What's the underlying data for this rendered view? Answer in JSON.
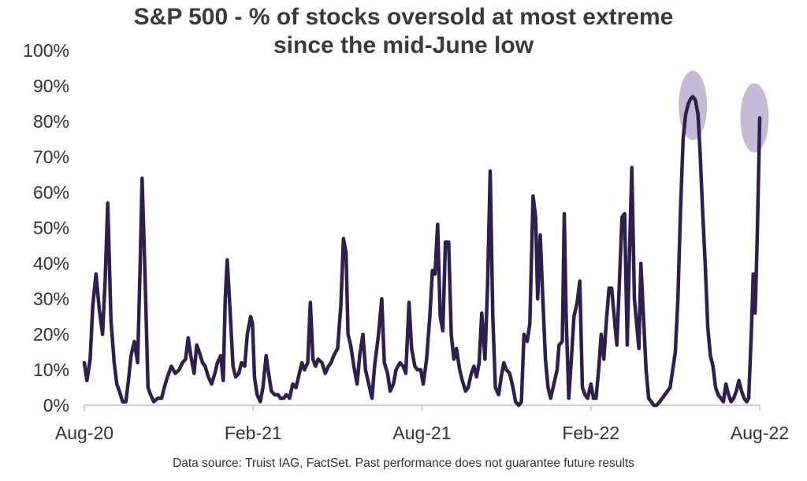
{
  "chart_data": {
    "type": "line",
    "title_line1": "S&P 500 - % of stocks oversold at most extreme",
    "title_line2": "since the mid-June low",
    "xlabel": "",
    "ylabel": "",
    "ylim": [
      0,
      100
    ],
    "y_ticks": [
      "0%",
      "10%",
      "20%",
      "30%",
      "40%",
      "50%",
      "60%",
      "70%",
      "80%",
      "90%",
      "100%"
    ],
    "y_tick_values": [
      0,
      10,
      20,
      30,
      40,
      50,
      60,
      70,
      80,
      90,
      100
    ],
    "x_ticks": [
      "Aug-20",
      "Feb-21",
      "Aug-21",
      "Feb-22",
      "Aug-22"
    ],
    "grid": false,
    "legend": "none",
    "line_color": "#2e1f4f",
    "highlight_color": "#b8b0cc",
    "x_range": [
      0,
      104
    ],
    "x_tick_positions": [
      0,
      26,
      52,
      78,
      104
    ],
    "highlights": [
      {
        "x": 93.7,
        "y": 84.5
      },
      {
        "x": 103.2,
        "y": 81
      }
    ],
    "series": [
      {
        "values": [
          [
            0,
            12
          ],
          [
            0.4,
            7
          ],
          [
            0.9,
            13
          ],
          [
            1.3,
            28
          ],
          [
            1.8,
            37
          ],
          [
            2.3,
            27
          ],
          [
            2.8,
            20
          ],
          [
            3.2,
            35
          ],
          [
            3.6,
            57
          ],
          [
            4.1,
            24
          ],
          [
            4.6,
            12
          ],
          [
            5,
            6
          ],
          [
            5.4,
            4
          ],
          [
            5.9,
            1
          ],
          [
            6.4,
            1
          ],
          [
            6.8,
            7
          ],
          [
            7.2,
            14
          ],
          [
            7.7,
            18
          ],
          [
            8.2,
            12
          ],
          [
            8.6,
            40
          ],
          [
            8.9,
            64
          ],
          [
            9.3,
            40
          ],
          [
            9.8,
            5
          ],
          [
            10.2,
            3
          ],
          [
            10.7,
            1
          ],
          [
            11.3,
            2
          ],
          [
            11.9,
            2
          ],
          [
            12.3,
            5
          ],
          [
            12.8,
            8
          ],
          [
            13.4,
            11
          ],
          [
            14,
            9
          ],
          [
            14.6,
            10
          ],
          [
            15.1,
            12
          ],
          [
            15.6,
            13
          ],
          [
            16,
            19
          ],
          [
            16.4,
            14
          ],
          [
            16.9,
            9
          ],
          [
            17.3,
            17
          ],
          [
            17.7,
            15
          ],
          [
            18.2,
            12
          ],
          [
            18.6,
            11
          ],
          [
            19.1,
            8
          ],
          [
            19.6,
            6
          ],
          [
            20.1,
            9
          ],
          [
            20.5,
            12
          ],
          [
            21,
            14
          ],
          [
            21.4,
            7
          ],
          [
            21.7,
            30
          ],
          [
            22,
            41
          ],
          [
            22.4,
            28
          ],
          [
            22.9,
            11
          ],
          [
            23.3,
            8
          ],
          [
            23.8,
            9
          ],
          [
            24.2,
            12
          ],
          [
            24.7,
            11
          ],
          [
            25.1,
            20
          ],
          [
            25.6,
            25
          ],
          [
            25.9,
            23
          ],
          [
            26.2,
            8
          ],
          [
            26.6,
            3
          ],
          [
            27.1,
            1
          ],
          [
            27.5,
            5
          ],
          [
            28,
            14
          ],
          [
            28.3,
            10
          ],
          [
            28.8,
            4
          ],
          [
            29.3,
            3
          ],
          [
            29.8,
            3
          ],
          [
            30.2,
            2
          ],
          [
            30.7,
            2
          ],
          [
            31.1,
            3
          ],
          [
            31.6,
            2
          ],
          [
            32.1,
            6
          ],
          [
            32.6,
            5
          ],
          [
            33.1,
            9
          ],
          [
            33.5,
            12
          ],
          [
            33.9,
            10
          ],
          [
            34.4,
            12
          ],
          [
            34.8,
            29
          ],
          [
            35.2,
            13
          ],
          [
            35.6,
            11
          ],
          [
            36,
            13
          ],
          [
            36.6,
            12
          ],
          [
            37.1,
            9
          ],
          [
            37.6,
            11
          ],
          [
            38,
            12
          ],
          [
            38.4,
            14
          ],
          [
            39,
            16
          ],
          [
            39.5,
            28
          ],
          [
            39.9,
            47
          ],
          [
            40.3,
            43
          ],
          [
            40.6,
            20
          ],
          [
            41,
            17
          ],
          [
            41.5,
            11
          ],
          [
            42,
            6
          ],
          [
            42.4,
            14
          ],
          [
            42.9,
            20
          ],
          [
            43.3,
            10
          ],
          [
            43.8,
            6
          ],
          [
            44.3,
            2
          ],
          [
            44.7,
            11
          ],
          [
            45.3,
            20
          ],
          [
            45.8,
            30
          ],
          [
            46.2,
            12
          ],
          [
            46.7,
            9
          ],
          [
            47.1,
            4
          ],
          [
            47.6,
            6
          ],
          [
            48,
            10
          ],
          [
            48.6,
            12
          ],
          [
            49.1,
            11
          ],
          [
            49.5,
            9
          ],
          [
            50,
            29
          ],
          [
            50.4,
            16
          ],
          [
            50.9,
            11
          ],
          [
            51.3,
            10
          ],
          [
            51.8,
            10
          ],
          [
            52.2,
            6
          ],
          [
            52.7,
            13
          ],
          [
            53.2,
            25
          ],
          [
            53.6,
            38
          ],
          [
            54,
            37
          ],
          [
            54.4,
            51
          ],
          [
            54.8,
            25
          ],
          [
            55.2,
            21
          ],
          [
            55.6,
            46
          ],
          [
            56.1,
            46
          ],
          [
            56.5,
            20
          ],
          [
            56.9,
            13
          ],
          [
            57.3,
            16
          ],
          [
            57.8,
            10
          ],
          [
            58.2,
            7
          ],
          [
            58.7,
            4
          ],
          [
            59.1,
            5
          ],
          [
            59.6,
            9
          ],
          [
            60,
            11
          ],
          [
            60.4,
            8
          ],
          [
            60.8,
            12
          ],
          [
            61.2,
            26
          ],
          [
            61.7,
            13
          ],
          [
            62.1,
            34
          ],
          [
            62.5,
            66
          ],
          [
            62.9,
            25
          ],
          [
            63.3,
            5
          ],
          [
            63.8,
            3
          ],
          [
            64.2,
            8
          ],
          [
            64.6,
            12
          ],
          [
            65,
            10
          ],
          [
            65.5,
            9
          ],
          [
            66,
            5
          ],
          [
            66.4,
            1
          ],
          [
            66.9,
            0
          ],
          [
            67.3,
            1
          ],
          [
            67.7,
            20
          ],
          [
            68.2,
            18
          ],
          [
            68.6,
            23
          ],
          [
            69.1,
            59
          ],
          [
            69.5,
            53
          ],
          [
            69.8,
            30
          ],
          [
            70.2,
            48
          ],
          [
            70.6,
            30
          ],
          [
            71,
            13
          ],
          [
            71.4,
            5
          ],
          [
            71.8,
            2
          ],
          [
            72.3,
            6
          ],
          [
            72.8,
            10
          ],
          [
            73.1,
            17
          ],
          [
            73.6,
            18
          ],
          [
            73.9,
            54
          ],
          [
            74.2,
            25
          ],
          [
            74.6,
            2
          ],
          [
            75,
            13
          ],
          [
            75.4,
            25
          ],
          [
            75.9,
            29
          ],
          [
            76.3,
            35
          ],
          [
            76.7,
            5
          ],
          [
            77.1,
            3
          ],
          [
            77.5,
            2
          ],
          [
            78,
            6
          ],
          [
            78.4,
            2
          ],
          [
            78.8,
            2
          ],
          [
            79.2,
            10
          ],
          [
            79.6,
            20
          ],
          [
            80,
            13
          ],
          [
            80.4,
            24
          ],
          [
            80.8,
            33
          ],
          [
            81.2,
            33
          ],
          [
            81.7,
            23
          ],
          [
            82,
            17
          ],
          [
            82.4,
            35
          ],
          [
            82.8,
            53
          ],
          [
            83.2,
            54
          ],
          [
            83.6,
            17
          ],
          [
            83.9,
            40
          ],
          [
            84.3,
            67
          ],
          [
            84.7,
            30
          ],
          [
            85,
            24
          ],
          [
            85.4,
            16
          ],
          [
            85.7,
            40
          ],
          [
            86.1,
            25
          ],
          [
            86.5,
            10
          ],
          [
            86.9,
            2
          ],
          [
            87.3,
            1
          ],
          [
            87.7,
            0
          ],
          [
            88.1,
            0
          ],
          [
            88.6,
            1
          ],
          [
            89,
            2
          ],
          [
            89.4,
            3
          ],
          [
            89.8,
            4
          ],
          [
            90.2,
            5
          ],
          [
            90.6,
            10
          ],
          [
            91,
            15
          ],
          [
            91.4,
            30
          ],
          [
            91.8,
            55
          ],
          [
            92.2,
            75
          ],
          [
            92.6,
            82
          ],
          [
            93,
            85
          ],
          [
            93.4,
            86.5
          ],
          [
            93.7,
            87
          ],
          [
            94.1,
            86
          ],
          [
            94.5,
            82
          ],
          [
            94.8,
            72
          ],
          [
            95.2,
            55
          ],
          [
            95.6,
            40
          ],
          [
            96,
            22
          ],
          [
            96.4,
            14
          ],
          [
            96.8,
            11
          ],
          [
            97.2,
            5
          ],
          [
            97.6,
            3
          ],
          [
            98,
            2
          ],
          [
            98.4,
            1
          ],
          [
            98.8,
            6
          ],
          [
            99.2,
            3
          ],
          [
            99.6,
            1
          ],
          [
            100,
            2
          ],
          [
            100.4,
            4
          ],
          [
            100.8,
            7
          ],
          [
            101.2,
            4
          ],
          [
            101.6,
            2
          ],
          [
            102,
            1
          ],
          [
            102.3,
            2
          ],
          [
            102.7,
            20
          ],
          [
            103,
            37
          ],
          [
            103.3,
            26
          ],
          [
            103.6,
            46
          ],
          [
            103.9,
            72
          ],
          [
            104,
            81
          ]
        ]
      }
    ]
  },
  "footer": {
    "source_note": "Data source: Truist IAG, FactSet. Past performance does not guarantee future results"
  }
}
